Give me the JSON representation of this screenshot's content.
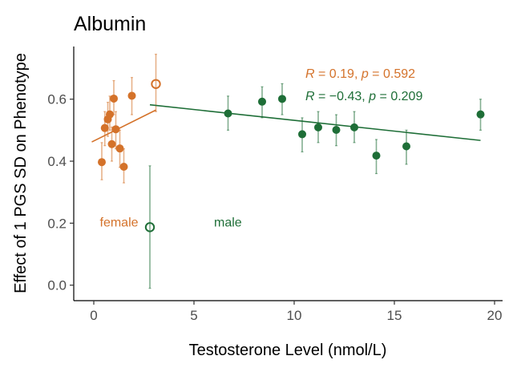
{
  "chart_data": {
    "type": "scatter",
    "title": "Albumin",
    "xlabel": "Testosterone Level (nmol/L)",
    "ylabel": "Effect of 1 PGS SD on Phenotype",
    "xlim": [
      -1,
      20.4
    ],
    "ylim": [
      -0.05,
      0.77
    ],
    "x_ticks": [
      0,
      5,
      10,
      15,
      20
    ],
    "y_ticks": [
      0.0,
      0.2,
      0.4,
      0.6
    ],
    "x_tick_labels": [
      "0",
      "5",
      "10",
      "15",
      "20"
    ],
    "y_tick_labels": [
      "0.0",
      "0.2",
      "0.4",
      "0.6"
    ],
    "grid": false,
    "series": [
      {
        "name": "female",
        "color": "#d4722a",
        "label_pos": [
          0.3,
          0.205
        ],
        "regression": {
          "x": [
            -0.1,
            3.1
          ],
          "y": [
            0.462,
            0.565
          ]
        },
        "stat_text": {
          "R": "0.19",
          "p": "0.592"
        },
        "points": [
          {
            "x": 0.4,
            "y": 0.397,
            "lo": 0.34,
            "hi": 0.46
          },
          {
            "x": 0.55,
            "y": 0.507,
            "lo": 0.45,
            "hi": 0.56
          },
          {
            "x": 0.7,
            "y": 0.535,
            "lo": 0.48,
            "hi": 0.59
          },
          {
            "x": 0.8,
            "y": 0.551,
            "lo": 0.5,
            "hi": 0.61
          },
          {
            "x": 0.9,
            "y": 0.455,
            "lo": 0.4,
            "hi": 0.51
          },
          {
            "x": 1.0,
            "y": 0.602,
            "lo": 0.55,
            "hi": 0.66
          },
          {
            "x": 1.1,
            "y": 0.503,
            "lo": 0.44,
            "hi": 0.56
          },
          {
            "x": 1.3,
            "y": 0.441,
            "lo": 0.38,
            "hi": 0.5
          },
          {
            "x": 1.5,
            "y": 0.382,
            "lo": 0.33,
            "hi": 0.44
          },
          {
            "x": 1.9,
            "y": 0.611,
            "lo": 0.55,
            "hi": 0.67
          },
          {
            "x": 3.1,
            "y": 0.649,
            "lo": 0.56,
            "hi": 0.745,
            "open": true
          }
        ]
      },
      {
        "name": "male",
        "color": "#1e6e37",
        "label_pos": [
          6.0,
          0.205
        ],
        "regression": {
          "x": [
            2.8,
            19.3
          ],
          "y": [
            0.582,
            0.467
          ]
        },
        "stat_text": {
          "R": "−0.43",
          "p": "0.209"
        },
        "points": [
          {
            "x": 2.8,
            "y": 0.187,
            "lo": -0.01,
            "hi": 0.385,
            "open": true
          },
          {
            "x": 6.7,
            "y": 0.554,
            "lo": 0.5,
            "hi": 0.61
          },
          {
            "x": 8.4,
            "y": 0.592,
            "lo": 0.54,
            "hi": 0.64
          },
          {
            "x": 9.4,
            "y": 0.601,
            "lo": 0.55,
            "hi": 0.65
          },
          {
            "x": 10.4,
            "y": 0.487,
            "lo": 0.43,
            "hi": 0.54
          },
          {
            "x": 11.2,
            "y": 0.509,
            "lo": 0.46,
            "hi": 0.56
          },
          {
            "x": 12.1,
            "y": 0.501,
            "lo": 0.45,
            "hi": 0.55
          },
          {
            "x": 13.0,
            "y": 0.509,
            "lo": 0.46,
            "hi": 0.56
          },
          {
            "x": 14.1,
            "y": 0.418,
            "lo": 0.36,
            "hi": 0.47
          },
          {
            "x": 15.6,
            "y": 0.448,
            "lo": 0.39,
            "hi": 0.5
          },
          {
            "x": 19.3,
            "y": 0.551,
            "lo": 0.5,
            "hi": 0.6
          }
        ]
      }
    ],
    "stat_labels": {
      "R": "R",
      "eq": " = ",
      "sep": ", ",
      "p": "p"
    }
  }
}
